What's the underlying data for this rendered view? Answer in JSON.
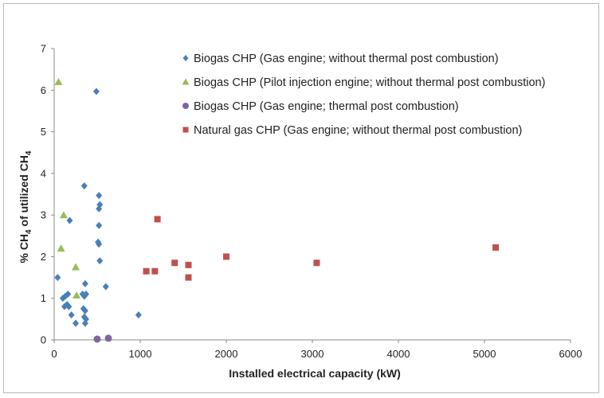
{
  "chart_data": {
    "type": "scatter",
    "title": "",
    "xlabel": "Installed electrical capacity (kW)",
    "ylabel_parts": {
      "a": "% CH",
      "b": "4",
      "c": " of utilized CH",
      "d": "4"
    },
    "xlim": [
      0,
      6000
    ],
    "ylim": [
      0,
      7
    ],
    "x_ticks": [
      0,
      1000,
      2000,
      3000,
      4000,
      5000,
      6000
    ],
    "y_ticks": [
      0,
      1,
      2,
      3,
      4,
      5,
      6,
      7
    ],
    "grid": false,
    "legend_position": "top-right",
    "series": [
      {
        "name": "Biogas CHP (Gas engine; without thermal post combustion)",
        "marker": "diamond",
        "color": "#4A7EBB",
        "points": [
          [
            490,
            5.97
          ],
          [
            350,
            3.7
          ],
          [
            180,
            2.87
          ],
          [
            520,
            3.47
          ],
          [
            530,
            3.25
          ],
          [
            520,
            3.15
          ],
          [
            520,
            2.75
          ],
          [
            510,
            2.35
          ],
          [
            520,
            2.3
          ],
          [
            530,
            1.9
          ],
          [
            600,
            1.28
          ],
          [
            40,
            1.5
          ],
          [
            100,
            1.0
          ],
          [
            130,
            1.05
          ],
          [
            160,
            1.1
          ],
          [
            120,
            0.8
          ],
          [
            150,
            0.85
          ],
          [
            170,
            0.8
          ],
          [
            200,
            0.6
          ],
          [
            250,
            0.4
          ],
          [
            330,
            1.1
          ],
          [
            350,
            1.05
          ],
          [
            360,
            1.35
          ],
          [
            370,
            1.1
          ],
          [
            340,
            0.75
          ],
          [
            360,
            0.7
          ],
          [
            350,
            0.55
          ],
          [
            370,
            0.5
          ],
          [
            360,
            0.4
          ],
          [
            980,
            0.6
          ]
        ]
      },
      {
        "name": "Biogas CHP (Pilot injection engine; without thermal post combustion)",
        "marker": "triangle",
        "color": "#9BBB59",
        "points": [
          [
            50,
            6.2
          ],
          [
            110,
            3.0
          ],
          [
            80,
            2.2
          ],
          [
            250,
            1.75
          ],
          [
            260,
            1.07
          ]
        ]
      },
      {
        "name": "Biogas CHP (Gas engine; thermal post combustion)",
        "marker": "circle",
        "color": "#8064A2",
        "points": [
          [
            500,
            0.02
          ],
          [
            630,
            0.04
          ]
        ]
      },
      {
        "name": "Natural gas CHP (Gas engine; without thermal post combustion)",
        "marker": "square",
        "color": "#C0504D",
        "points": [
          [
            1200,
            2.9
          ],
          [
            1070,
            1.65
          ],
          [
            1170,
            1.65
          ],
          [
            1400,
            1.85
          ],
          [
            1560,
            1.8
          ],
          [
            1560,
            1.5
          ],
          [
            2000,
            2.0
          ],
          [
            3050,
            1.85
          ],
          [
            5130,
            2.22
          ]
        ]
      }
    ]
  }
}
